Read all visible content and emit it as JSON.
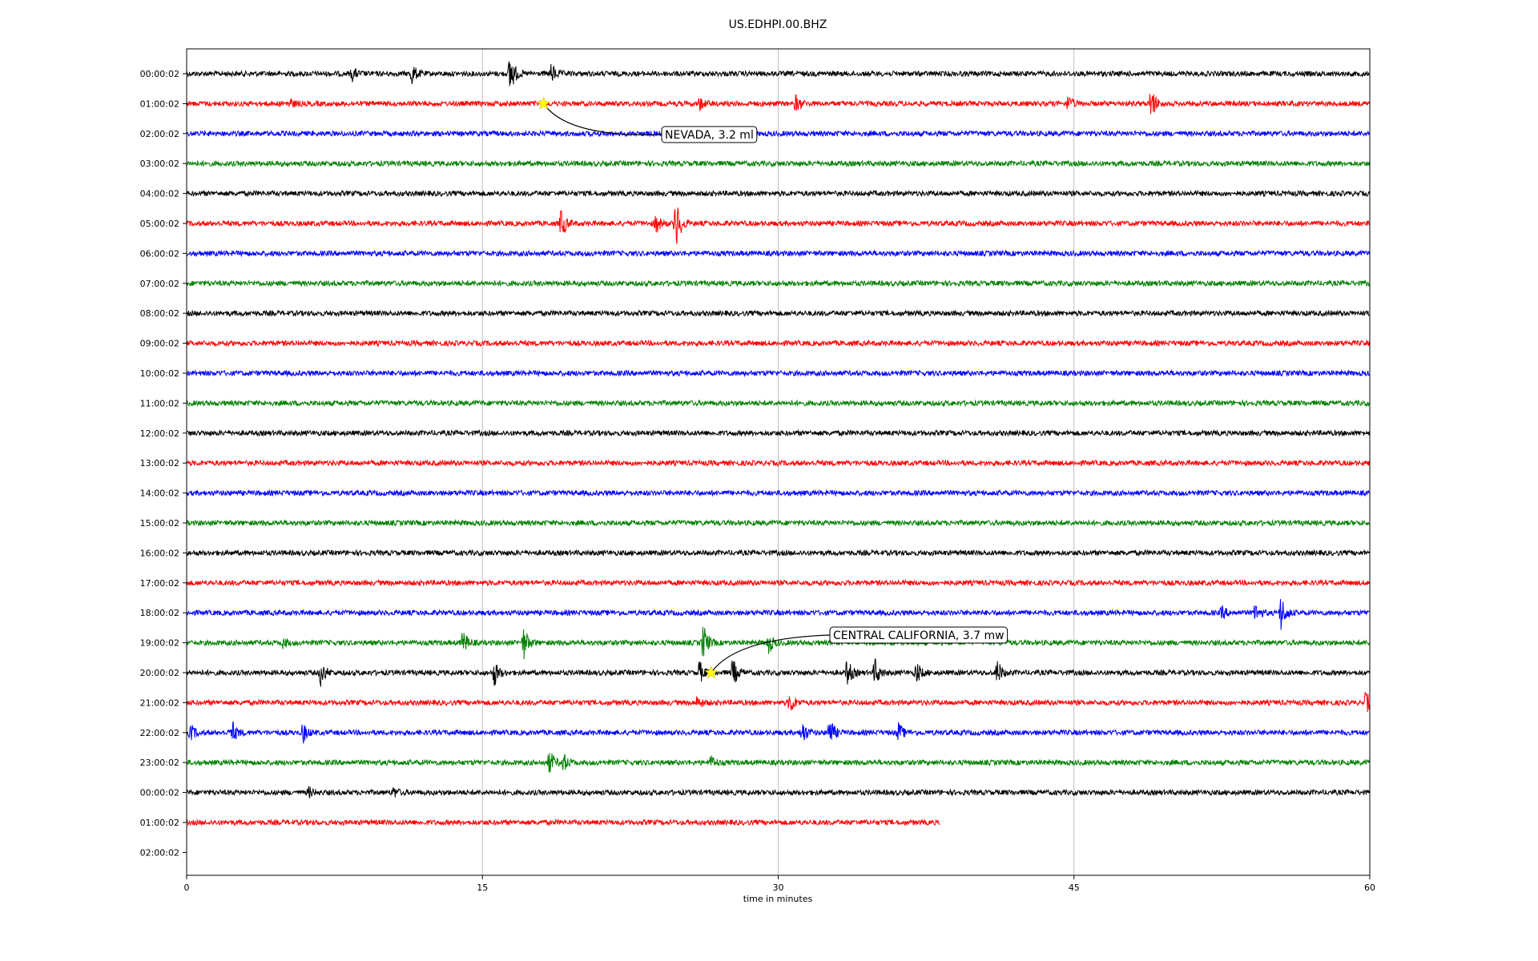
{
  "chart_data": {
    "type": "line",
    "title": "US.EDHPI.00.BHZ",
    "xlabel": "time in minutes",
    "ylabel": "",
    "xlim": [
      0,
      60
    ],
    "x_ticks": [
      "0",
      "15",
      "30",
      "45",
      "60"
    ],
    "x_tick_values": [
      0,
      15,
      30,
      45,
      60
    ],
    "vertical_grid": true,
    "row_labels": [
      "00:00:02",
      "01:00:02",
      "02:00:02",
      "03:00:02",
      "04:00:02",
      "05:00:02",
      "06:00:02",
      "07:00:02",
      "08:00:02",
      "09:00:02",
      "10:00:02",
      "11:00:02",
      "12:00:02",
      "13:00:02",
      "14:00:02",
      "15:00:02",
      "16:00:02",
      "17:00:02",
      "18:00:02",
      "19:00:02",
      "20:00:02",
      "21:00:02",
      "22:00:02",
      "23:00:02",
      "00:00:02",
      "01:00:02",
      "02:00:02"
    ],
    "trace_colors": [
      "#000000",
      "#ff0000",
      "#0000ff",
      "#008000"
    ],
    "trace_end_minutes": [
      60,
      60,
      60,
      60,
      60,
      60,
      60,
      60,
      60,
      60,
      60,
      60,
      60,
      60,
      60,
      60,
      60,
      60,
      60,
      60,
      60,
      60,
      60,
      60,
      60,
      38.2,
      0
    ],
    "events": [
      {
        "label": "NEVADA, 3.2 ml",
        "row": 1,
        "minute": 18.1
      },
      {
        "label": "CENTRAL CALIFORNIA, 3.7 mw",
        "row": 20,
        "minute": 26.6
      }
    ],
    "bursts": [
      {
        "row": 0,
        "minute": 8.4,
        "amp": 8
      },
      {
        "row": 0,
        "minute": 11.4,
        "amp": 14
      },
      {
        "row": 0,
        "minute": 16.4,
        "amp": 28
      },
      {
        "row": 0,
        "minute": 18.5,
        "amp": 12
      },
      {
        "row": 1,
        "minute": 5.2,
        "amp": 6
      },
      {
        "row": 1,
        "minute": 26.0,
        "amp": 8
      },
      {
        "row": 1,
        "minute": 30.9,
        "amp": 10
      },
      {
        "row": 1,
        "minute": 44.7,
        "amp": 10
      },
      {
        "row": 1,
        "minute": 48.9,
        "amp": 22
      },
      {
        "row": 5,
        "minute": 19.0,
        "amp": 20
      },
      {
        "row": 5,
        "minute": 23.8,
        "amp": 12
      },
      {
        "row": 5,
        "minute": 24.8,
        "amp": 36
      },
      {
        "row": 18,
        "minute": 52.5,
        "amp": 8
      },
      {
        "row": 18,
        "minute": 54.2,
        "amp": 12
      },
      {
        "row": 18,
        "minute": 55.5,
        "amp": 22
      },
      {
        "row": 19,
        "minute": 4.9,
        "amp": 6
      },
      {
        "row": 19,
        "minute": 14.0,
        "amp": 16
      },
      {
        "row": 19,
        "minute": 17.1,
        "amp": 20
      },
      {
        "row": 19,
        "minute": 26.2,
        "amp": 24
      },
      {
        "row": 19,
        "minute": 29.5,
        "amp": 14
      },
      {
        "row": 20,
        "minute": 6.8,
        "amp": 16
      },
      {
        "row": 20,
        "minute": 15.6,
        "amp": 16
      },
      {
        "row": 20,
        "minute": 26.0,
        "amp": 14
      },
      {
        "row": 20,
        "minute": 27.7,
        "amp": 18
      },
      {
        "row": 20,
        "minute": 33.5,
        "amp": 18
      },
      {
        "row": 20,
        "minute": 34.9,
        "amp": 18
      },
      {
        "row": 20,
        "minute": 37.0,
        "amp": 14
      },
      {
        "row": 20,
        "minute": 41.1,
        "amp": 16
      },
      {
        "row": 21,
        "minute": 25.9,
        "amp": 8
      },
      {
        "row": 21,
        "minute": 30.6,
        "amp": 14
      },
      {
        "row": 21,
        "minute": 59.8,
        "amp": 14
      },
      {
        "row": 22,
        "minute": 0.2,
        "amp": 10
      },
      {
        "row": 22,
        "minute": 2.3,
        "amp": 14
      },
      {
        "row": 22,
        "minute": 5.9,
        "amp": 12
      },
      {
        "row": 22,
        "minute": 31.2,
        "amp": 16
      },
      {
        "row": 22,
        "minute": 32.6,
        "amp": 20
      },
      {
        "row": 22,
        "minute": 36.1,
        "amp": 12
      },
      {
        "row": 23,
        "minute": 18.4,
        "amp": 16
      },
      {
        "row": 23,
        "minute": 19.1,
        "amp": 12
      },
      {
        "row": 23,
        "minute": 26.6,
        "amp": 8
      },
      {
        "row": 24,
        "minute": 6.2,
        "amp": 6
      },
      {
        "row": 24,
        "minute": 10.5,
        "amp": 6
      }
    ]
  }
}
